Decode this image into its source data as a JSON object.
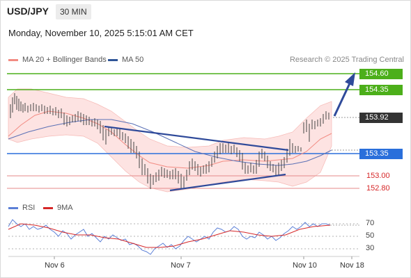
{
  "header": {
    "pair": "USD/JPY",
    "timeframe": "30 MIN",
    "datetime": "Monday, November 10, 2025 5:15:01 AM CET"
  },
  "legend": {
    "ma20_label": "MA 20 + Bollinger Bands",
    "ma50_label": "MA 50",
    "ma20_color": "#f28b82",
    "ma50_color": "#2f5597",
    "credit": "Research © 2025 Trading Central"
  },
  "price_levels": {
    "resistance_2": "154.60",
    "resistance_1": "154.35",
    "current": "153.92",
    "pivot": "153.35",
    "support_1": "153.00",
    "support_2": "152.80",
    "resistance_color": "#4caf1a",
    "pivot_color": "#2a6fdb",
    "support_color": "#d62728",
    "current_color": "#333333"
  },
  "rsi_panel": {
    "rsi_label": "RSI",
    "ma_label": "9MA",
    "rsi_color": "#5b7fd6",
    "ma_color": "#d62728",
    "levels": [
      "70",
      "50",
      "30"
    ]
  },
  "x_axis": {
    "labels": [
      "Nov 6",
      "Nov 7",
      "Nov 10",
      "Nov 18"
    ]
  }
}
